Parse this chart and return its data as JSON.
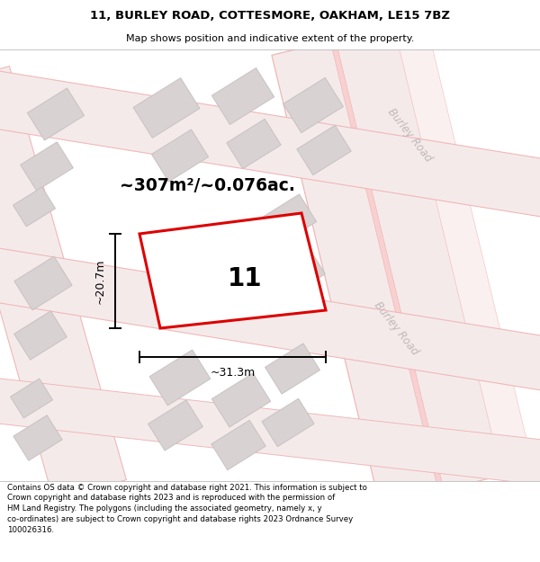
{
  "title": "11, BURLEY ROAD, COTTESMORE, OAKHAM, LE15 7BZ",
  "subtitle": "Map shows position and indicative extent of the property.",
  "footer": "Contains OS data © Crown copyright and database right 2021. This information is subject to Crown copyright and database rights 2023 and is reproduced with the permission of HM Land Registry. The polygons (including the associated geometry, namely x, y co-ordinates) are subject to Crown copyright and database rights 2023 Ordnance Survey 100026316.",
  "area_label": "~307m²/~0.076ac.",
  "number_label": "11",
  "dim_width": "~31.3m",
  "dim_height": "~20.7m",
  "road_label": "Burley Road",
  "map_bg": "#f7f3f3",
  "building_fill": "#d8d2d2",
  "building_edge": "#c8c2c2",
  "road_fill": "#f5eaea",
  "road_edge": "#f0b8b8",
  "property_edge": "#dd0000",
  "road_text_color": "#c0b8b8",
  "header_bg": "#ffffff",
  "footer_bg": "#ffffff"
}
